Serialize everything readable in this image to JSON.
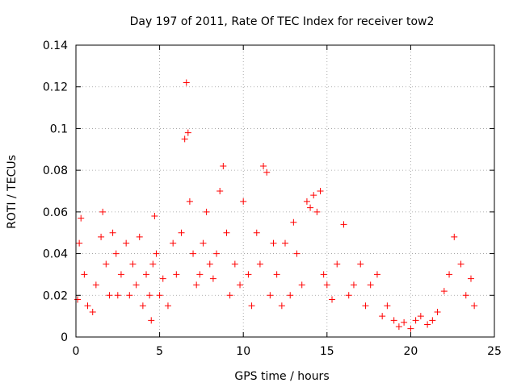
{
  "chart_data": {
    "type": "scatter",
    "title": "Day 197 of 2011, Rate Of TEC Index for receiver tow2",
    "xlabel": "GPS time / hours",
    "ylabel": "ROTI / TECUs",
    "xlim": [
      0,
      25
    ],
    "ylim": [
      0,
      0.14
    ],
    "x_ticks": [
      "0",
      "5",
      "10",
      "15",
      "20",
      "25"
    ],
    "y_ticks": [
      "0",
      "0.02",
      "0.04",
      "0.06",
      "0.08",
      "0.1",
      "0.12",
      "0.14"
    ],
    "grid": true,
    "marker": "+",
    "color": "#ff0000",
    "series": [
      {
        "x": [
          0.1,
          0.2,
          0.3,
          0.5,
          0.7,
          1.0,
          1.2,
          1.5,
          1.6,
          1.8,
          2.0,
          2.2,
          2.4,
          2.5,
          2.7,
          3.0,
          3.2,
          3.4,
          3.6,
          3.8,
          4.0,
          4.2,
          4.4,
          4.5,
          4.6,
          4.7,
          4.8,
          5.0,
          5.2,
          5.5,
          5.8,
          6.0,
          6.3,
          6.5,
          6.6,
          6.7,
          6.8,
          7.0,
          7.2,
          7.4,
          7.6,
          7.8,
          8.0,
          8.2,
          8.4,
          8.6,
          8.8,
          9.0,
          9.2,
          9.5,
          9.8,
          10.0,
          10.3,
          10.5,
          10.8,
          11.0,
          11.2,
          11.4,
          11.6,
          11.8,
          12.0,
          12.3,
          12.5,
          12.8,
          13.0,
          13.2,
          13.5,
          13.8,
          14.0,
          14.2,
          14.4,
          14.6,
          14.8,
          15.0,
          15.3,
          15.6,
          16.0,
          16.3,
          16.6,
          17.0,
          17.3,
          17.6,
          18.0,
          18.3,
          18.6,
          19.0,
          19.3,
          19.6,
          20.0,
          20.3,
          20.6,
          21.0,
          21.3,
          21.6,
          22.0,
          22.3,
          22.6,
          23.0,
          23.3,
          23.6,
          23.8
        ],
        "y": [
          0.018,
          0.045,
          0.057,
          0.03,
          0.015,
          0.012,
          0.025,
          0.048,
          0.06,
          0.035,
          0.02,
          0.05,
          0.04,
          0.02,
          0.03,
          0.045,
          0.02,
          0.035,
          0.025,
          0.048,
          0.015,
          0.03,
          0.02,
          0.008,
          0.035,
          0.058,
          0.04,
          0.02,
          0.028,
          0.015,
          0.045,
          0.03,
          0.05,
          0.095,
          0.122,
          0.098,
          0.065,
          0.04,
          0.025,
          0.03,
          0.045,
          0.06,
          0.035,
          0.028,
          0.04,
          0.07,
          0.082,
          0.05,
          0.02,
          0.035,
          0.025,
          0.065,
          0.03,
          0.015,
          0.05,
          0.035,
          0.082,
          0.079,
          0.02,
          0.045,
          0.03,
          0.015,
          0.045,
          0.02,
          0.055,
          0.04,
          0.025,
          0.065,
          0.062,
          0.068,
          0.06,
          0.07,
          0.03,
          0.025,
          0.018,
          0.035,
          0.054,
          0.02,
          0.025,
          0.035,
          0.015,
          0.025,
          0.03,
          0.01,
          0.015,
          0.008,
          0.005,
          0.007,
          0.004,
          0.008,
          0.01,
          0.006,
          0.008,
          0.012,
          0.022,
          0.03,
          0.048,
          0.035,
          0.02,
          0.028,
          0.015
        ]
      }
    ]
  }
}
